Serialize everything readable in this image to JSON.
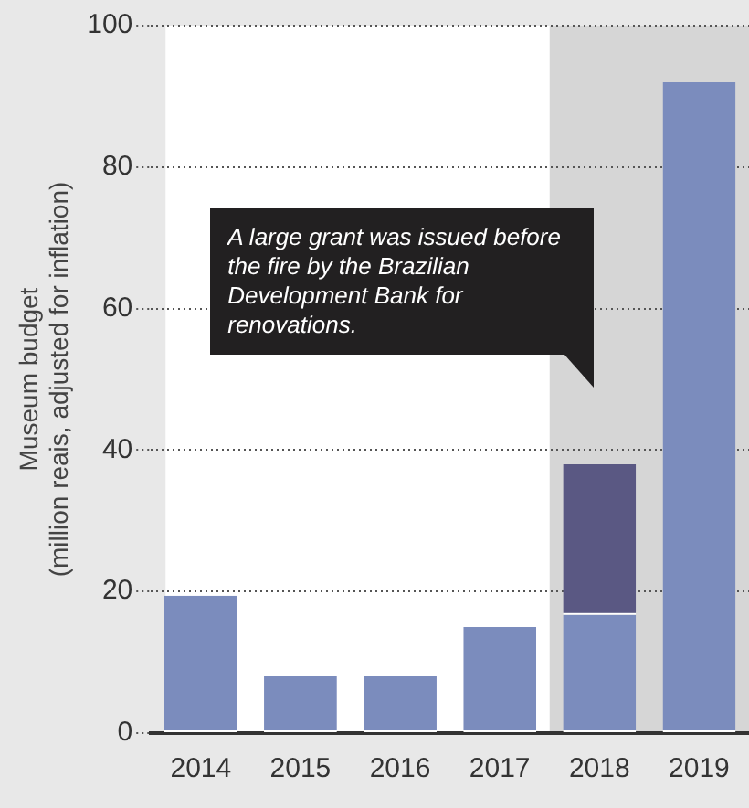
{
  "chart_data": {
    "type": "bar",
    "stacked": true,
    "categories": [
      "2014",
      "2015",
      "2016",
      "2017",
      "2018",
      "2019"
    ],
    "series": [
      {
        "color": "#7b8cbd",
        "values": [
          19.4,
          8,
          8,
          15,
          16.7,
          92
        ]
      },
      {
        "color": "#5a5883",
        "values": [
          null,
          null,
          null,
          null,
          21.3,
          null
        ]
      }
    ],
    "ylabel": "Museum budget\n(million reais, adjusted for inflation)",
    "ylim": [
      0,
      100
    ],
    "yticks": [
      0,
      20,
      40,
      60,
      80,
      100
    ],
    "grid": "y",
    "legend": false,
    "bands": [
      {
        "axis": "x",
        "from": "2018",
        "to": "2019",
        "color": "#d6d6d6"
      }
    ],
    "annotations": [
      "A large grant was issued before the fire by the Brazilian Development Bank for renovations."
    ]
  }
}
